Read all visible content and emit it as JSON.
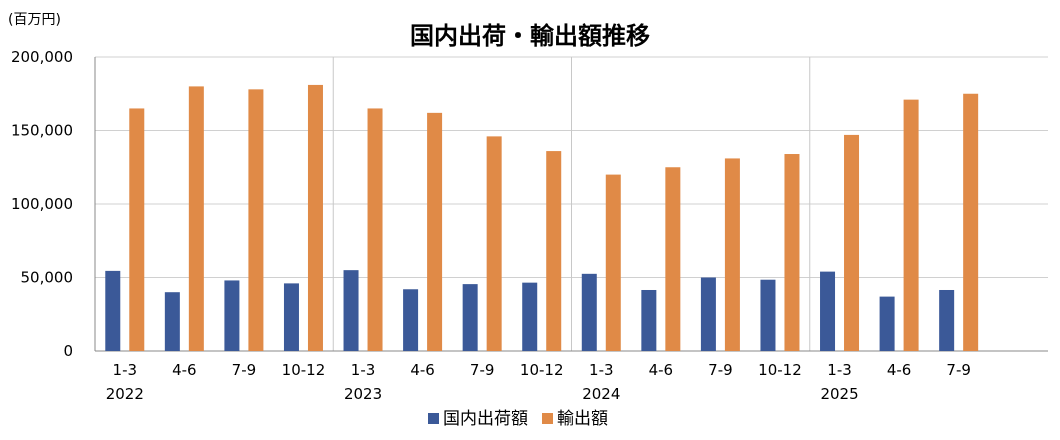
{
  "chart_data": {
    "type": "bar",
    "title": "国内出荷・輸出額推移",
    "unit_label": "(百万円)",
    "ylim": [
      0,
      200000
    ],
    "yticks": [
      "200,000",
      "150,000",
      "100,000",
      "50,000",
      "0"
    ],
    "ytick_values": [
      200000,
      150000,
      100000,
      50000,
      0
    ],
    "categories": [
      "1-3",
      "4-6",
      "7-9",
      "10-12",
      "1-3",
      "4-6",
      "7-9",
      "10-12",
      "1-3",
      "4-6",
      "7-9",
      "10-12",
      "1-3",
      "4-6",
      "7-9"
    ],
    "years": [
      "2022",
      "2023",
      "2024",
      "2025"
    ],
    "year_quarter_counts": [
      4,
      4,
      4,
      3
    ],
    "series": [
      {
        "name": "国内出荷額",
        "color": "#3b5998",
        "values": [
          54500,
          40000,
          48000,
          46000,
          55000,
          42000,
          45500,
          46500,
          52500,
          41500,
          50000,
          48500,
          54000,
          37000,
          41500
        ]
      },
      {
        "name": "輸出額",
        "color": "#e08a47",
        "values": [
          165000,
          180000,
          178000,
          181000,
          165000,
          162000,
          146000,
          136000,
          120000,
          125000,
          131000,
          134000,
          147000,
          171000,
          175000
        ]
      }
    ],
    "grid": {
      "horizontal": true,
      "year_separators": true
    },
    "legend_position": "bottom-center"
  }
}
